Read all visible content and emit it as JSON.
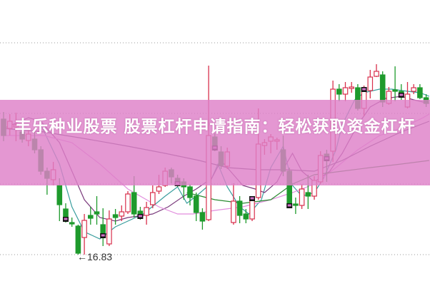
{
  "title": "丰乐种业股票 股票杠杆申请指南：轻松获取资金杠杆",
  "chart_data": {
    "type": "candlestick",
    "ylim": [
      15.95,
      23.97
    ],
    "grid": true,
    "gridlines": [
      22.77,
      20.79,
      18.81,
      16.83
    ],
    "low_annotation": "16.83",
    "colors": {
      "up": "#d8304c",
      "down": "#1e9a2c",
      "marker": "#111111",
      "marker_accent": "#d070c8",
      "banner": "#de80c8"
    },
    "candles": [
      [
        20.63,
        20.83,
        20.01,
        20.17
      ],
      [
        20.37,
        20.77,
        20.17,
        20.57
      ],
      [
        20.41,
        20.81,
        20.01,
        20.47
      ],
      [
        20.27,
        20.47,
        19.97,
        20.07
      ],
      [
        20.03,
        20.37,
        19.87,
        20.21
      ],
      [
        20.07,
        20.27,
        19.67,
        19.77
      ],
      [
        19.77,
        19.87,
        19.07,
        19.17
      ],
      [
        19.17,
        19.27,
        18.51,
        18.97
      ],
      [
        18.93,
        19.43,
        18.77,
        19.21
      ],
      [
        18.77,
        18.97,
        17.77,
        18.23
      ],
      [
        18.11,
        18.27,
        17.73,
        17.83
      ],
      [
        17.73,
        17.87,
        17.61,
        17.69
      ],
      [
        17.63,
        17.67,
        16.83,
        16.87
      ],
      [
        17.31,
        17.97,
        16.83,
        17.79
      ],
      [
        17.93,
        18.17,
        17.67,
        17.85
      ],
      [
        18.03,
        18.47,
        17.67,
        17.97
      ],
      [
        17.67,
        18.13,
        17.07,
        17.37
      ],
      [
        17.13,
        18.07,
        17.07,
        17.83
      ],
      [
        17.95,
        18.11,
        17.67,
        17.87
      ],
      [
        17.91,
        18.21,
        17.77,
        18.03
      ],
      [
        18.03,
        18.61,
        17.97,
        18.53
      ],
      [
        18.57,
        19.03,
        17.87,
        17.97
      ],
      [
        18.05,
        18.17,
        17.81,
        17.91
      ],
      [
        17.93,
        18.31,
        17.67,
        18.15
      ],
      [
        18.23,
        18.77,
        18.13,
        18.57
      ],
      [
        18.61,
        19.07,
        18.53,
        18.73
      ],
      [
        18.77,
        19.27,
        18.73,
        19.17
      ],
      [
        19.21,
        19.27,
        18.83,
        19.01
      ],
      [
        18.97,
        19.07,
        18.73,
        18.83
      ],
      [
        18.87,
        18.97,
        18.37,
        18.73
      ],
      [
        18.73,
        18.81,
        18.21,
        18.43
      ],
      [
        18.47,
        18.57,
        17.77,
        18.01
      ],
      [
        18.01,
        18.13,
        17.53,
        17.77
      ],
      [
        17.81,
        22.13,
        17.77,
        20.17
      ],
      [
        20.13,
        20.23,
        19.73,
        19.83
      ],
      [
        19.71,
        19.87,
        19.23,
        19.33
      ],
      [
        19.31,
        19.83,
        19.23,
        19.71
      ],
      [
        17.73,
        18.83,
        17.67,
        18.33
      ],
      [
        18.33,
        18.47,
        17.71,
        17.93
      ],
      [
        17.97,
        18.11,
        17.71,
        17.83
      ],
      [
        17.83,
        18.47,
        17.77,
        18.37
      ],
      [
        18.43,
        20.93,
        18.37,
        19.93
      ],
      [
        19.89,
        20.07,
        19.63,
        19.97
      ],
      [
        20.01,
        20.21,
        19.67,
        20.13
      ],
      [
        20.01,
        20.11,
        19.77,
        20.05
      ],
      [
        19.77,
        20.17,
        19.03,
        19.17
      ],
      [
        19.17,
        19.27,
        18.17,
        18.21
      ],
      [
        18.25,
        18.43,
        17.97,
        18.21
      ],
      [
        18.21,
        18.81,
        18.11,
        18.67
      ],
      [
        18.57,
        19.07,
        18.11,
        18.47
      ],
      [
        18.47,
        19.03,
        18.37,
        18.91
      ],
      [
        18.87,
        19.73,
        18.81,
        19.61
      ],
      [
        19.65,
        19.77,
        18.87,
        19.53
      ],
      [
        19.73,
        21.71,
        19.43,
        21.47
      ],
      [
        21.47,
        21.61,
        21.13,
        21.33
      ],
      [
        21.33,
        21.67,
        21.13,
        21.51
      ],
      [
        21.49,
        21.67,
        21.37,
        21.53
      ],
      [
        21.51,
        21.61,
        20.87,
        20.93
      ],
      [
        20.93,
        21.57,
        20.71,
        21.43
      ],
      [
        21.43,
        22.01,
        21.21,
        21.81
      ],
      [
        21.83,
        22.17,
        21.81,
        21.97
      ],
      [
        21.87,
        21.97,
        20.97,
        21.11
      ],
      [
        21.07,
        21.53,
        21.03,
        21.41
      ],
      [
        21.45,
        22.11,
        21.13,
        21.41
      ],
      [
        21.41,
        21.61,
        21.17,
        21.31
      ],
      [
        20.97,
        21.67,
        20.93,
        21.33
      ],
      [
        21.41,
        21.61,
        21.33,
        21.51
      ],
      [
        21.51,
        21.61,
        21.19,
        21.23
      ],
      [
        21.23,
        21.33,
        20.97,
        21.07
      ]
    ],
    "candle_fields": [
      "open",
      "high",
      "low",
      "close"
    ],
    "marker_every": 6,
    "marker_start": 10,
    "moving_averages": [
      {
        "color": "#3a9e9e",
        "points": [
          [
            6,
            20.47
          ],
          [
            9,
            19.37
          ],
          [
            11,
            18.17
          ],
          [
            13,
            17.47
          ],
          [
            15.5,
            17.27
          ],
          [
            18,
            17.61
          ],
          [
            20,
            17.77
          ],
          [
            22.5,
            17.97
          ],
          [
            26,
            18.47
          ],
          [
            28,
            18.73
          ],
          [
            29.5,
            18.27
          ],
          [
            31,
            18.47
          ],
          [
            33,
            18.77
          ],
          [
            34.5,
            19.37
          ],
          [
            36,
            18.73
          ],
          [
            38,
            18.17
          ],
          [
            39.5,
            17.97
          ],
          [
            41.5,
            18.37
          ],
          [
            43,
            19.27
          ],
          [
            45,
            19.87
          ],
          [
            46.5,
            18.77
          ],
          [
            48,
            18.47
          ],
          [
            50,
            18.57
          ],
          [
            51.5,
            18.97
          ],
          [
            53.5,
            19.77
          ],
          [
            54.5,
            20.47
          ],
          [
            56.5,
            21.17
          ],
          [
            58,
            21.37
          ],
          [
            60.5,
            21.47
          ],
          [
            62.5,
            21.47
          ],
          [
            65,
            21.41
          ],
          [
            67,
            21.37
          ],
          [
            68.5,
            21.27
          ]
        ]
      },
      {
        "color": "#7a3a7c",
        "points": [
          [
            0,
            20.37
          ],
          [
            4,
            20.67
          ],
          [
            6,
            20.57
          ],
          [
            9,
            19.97
          ],
          [
            11,
            19.17
          ],
          [
            13,
            18.37
          ],
          [
            15.5,
            17.87
          ],
          [
            18,
            17.77
          ],
          [
            20,
            17.87
          ],
          [
            22.5,
            17.93
          ],
          [
            24,
            17.97
          ],
          [
            26.5,
            18.17
          ],
          [
            29,
            18.47
          ],
          [
            31,
            18.67
          ],
          [
            33.5,
            18.97
          ],
          [
            35,
            19.47
          ],
          [
            37,
            19.07
          ],
          [
            38.5,
            18.77
          ],
          [
            40.5,
            18.67
          ],
          [
            42,
            18.57
          ],
          [
            44,
            18.87
          ],
          [
            45.5,
            19.37
          ],
          [
            46.5,
            19.67
          ],
          [
            48,
            19.17
          ],
          [
            50,
            18.87
          ],
          [
            52.5,
            19.17
          ],
          [
            54.5,
            19.67
          ],
          [
            57,
            20.47
          ],
          [
            59,
            20.97
          ],
          [
            61.5,
            21.21
          ],
          [
            64,
            21.27
          ],
          [
            66,
            21.17
          ],
          [
            68.5,
            21.07
          ]
        ]
      },
      {
        "color": "#e28ede",
        "points": [
          [
            0,
            20.17
          ],
          [
            6.5,
            20.17
          ],
          [
            11,
            19.97
          ],
          [
            15.5,
            19.37
          ],
          [
            20,
            18.67
          ],
          [
            25,
            18.17
          ],
          [
            28,
            17.97
          ],
          [
            30.5,
            17.97
          ],
          [
            34,
            18.07
          ],
          [
            38.5,
            18.17
          ],
          [
            43,
            18.37
          ],
          [
            46.5,
            18.57
          ],
          [
            50,
            18.81
          ],
          [
            53.5,
            19.27
          ],
          [
            57,
            19.77
          ],
          [
            60.5,
            20.17
          ],
          [
            64,
            20.37
          ],
          [
            67.5,
            20.67
          ],
          [
            68.5,
            20.77
          ]
        ]
      },
      {
        "color": "#5a4668",
        "points": [
          [
            0,
            20.37
          ],
          [
            6.5,
            20.27
          ],
          [
            13.5,
            20.07
          ],
          [
            20,
            19.87
          ],
          [
            26,
            19.67
          ],
          [
            31.5,
            19.47
          ],
          [
            36,
            19.27
          ],
          [
            41,
            19.21
          ],
          [
            45.5,
            19.21
          ],
          [
            50,
            19.17
          ],
          [
            54.5,
            19.47
          ],
          [
            59,
            19.87
          ],
          [
            64,
            20.27
          ],
          [
            68.5,
            20.57
          ]
        ]
      },
      {
        "color": "#2a8a30",
        "points": [
          [
            29.5,
            18.57
          ],
          [
            34,
            18.37
          ],
          [
            38.5,
            18.27
          ],
          [
            43,
            18.37
          ],
          [
            46.5,
            18.81
          ],
          [
            50,
            19.07
          ],
          [
            54.5,
            19.17
          ],
          [
            59,
            19.27
          ],
          [
            64,
            19.37
          ],
          [
            68.5,
            19.47
          ]
        ]
      }
    ]
  }
}
